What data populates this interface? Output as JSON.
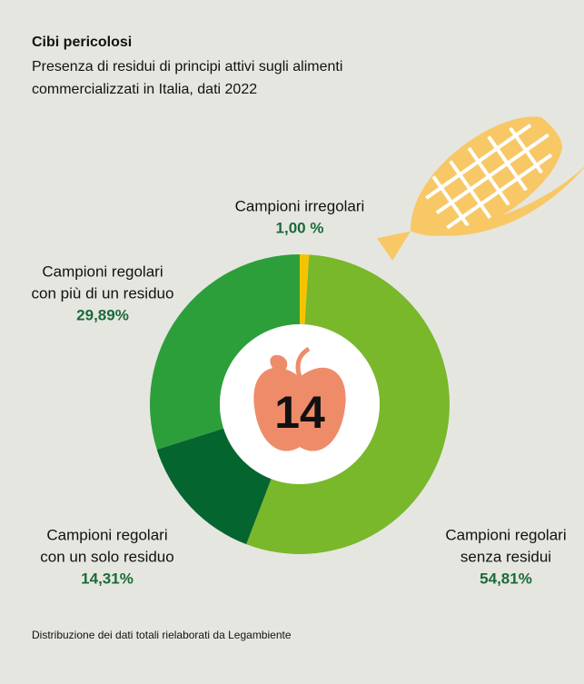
{
  "title": "Cibi pericolosi",
  "subtitle": [
    "Presenza di residui di principi attivi sugli alimenti",
    "commercializzati in Italia, dati 2022"
  ],
  "badge": "14",
  "footer": "Distribuzione dei dati totali rielaborati da Legambiente",
  "chart_data": {
    "type": "pie",
    "donut": true,
    "categories": [
      [
        "Campioni irregolari"
      ],
      [
        "Campioni regolari",
        "senza residui"
      ],
      [
        "Campioni regolari",
        "con un solo residuo"
      ],
      [
        "Campioni regolari",
        "con più di un residuo"
      ]
    ],
    "values": [
      1.0,
      54.81,
      14.31,
      29.89
    ],
    "value_labels": [
      "1,00 %",
      "54,81%",
      "14,31%",
      "29,89%"
    ],
    "colors": [
      "#f5c400",
      "#78b82a",
      "#05652f",
      "#2c9f3a"
    ]
  }
}
